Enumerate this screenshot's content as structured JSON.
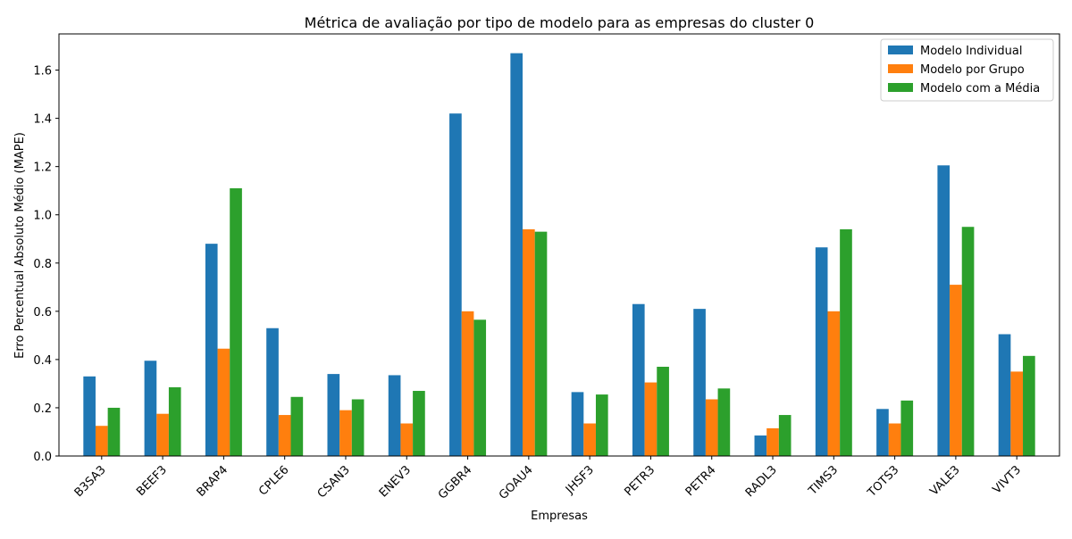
{
  "chart_data": {
    "type": "bar",
    "title": "Métrica de avaliação por tipo de modelo para as empresas do cluster 0",
    "xlabel": "Empresas",
    "ylabel": "Erro Percentual Absoluto Médio (MAPE)",
    "ylim": [
      0,
      1.75
    ],
    "yticks": [
      "0.0",
      "0.2",
      "0.4",
      "0.6",
      "0.8",
      "1.0",
      "1.2",
      "1.4",
      "1.6"
    ],
    "grid": false,
    "legend_position": "top-right",
    "categories": [
      "B3SA3",
      "BEEF3",
      "BRAP4",
      "CPLE6",
      "CSAN3",
      "ENEV3",
      "GGBR4",
      "GOAU4",
      "JHSF3",
      "PETR3",
      "PETR4",
      "RADL3",
      "TIMS3",
      "TOTS3",
      "VALE3",
      "VIVT3"
    ],
    "series": [
      {
        "name": "Modelo Individual",
        "color": "#1f77b4",
        "values": [
          0.33,
          0.395,
          0.88,
          0.53,
          0.34,
          0.335,
          1.42,
          1.67,
          0.265,
          0.63,
          0.61,
          0.085,
          0.865,
          0.195,
          1.205,
          0.505
        ]
      },
      {
        "name": "Modelo por Grupo",
        "color": "#ff7f0e",
        "values": [
          0.125,
          0.175,
          0.445,
          0.17,
          0.19,
          0.135,
          0.6,
          0.94,
          0.135,
          0.305,
          0.235,
          0.115,
          0.6,
          0.135,
          0.71,
          0.35
        ]
      },
      {
        "name": "Modelo com a Média",
        "color": "#2ca02c",
        "values": [
          0.2,
          0.285,
          1.11,
          0.245,
          0.235,
          0.27,
          0.565,
          0.93,
          0.255,
          0.37,
          0.28,
          0.17,
          0.94,
          0.23,
          0.95,
          0.415
        ]
      }
    ]
  }
}
